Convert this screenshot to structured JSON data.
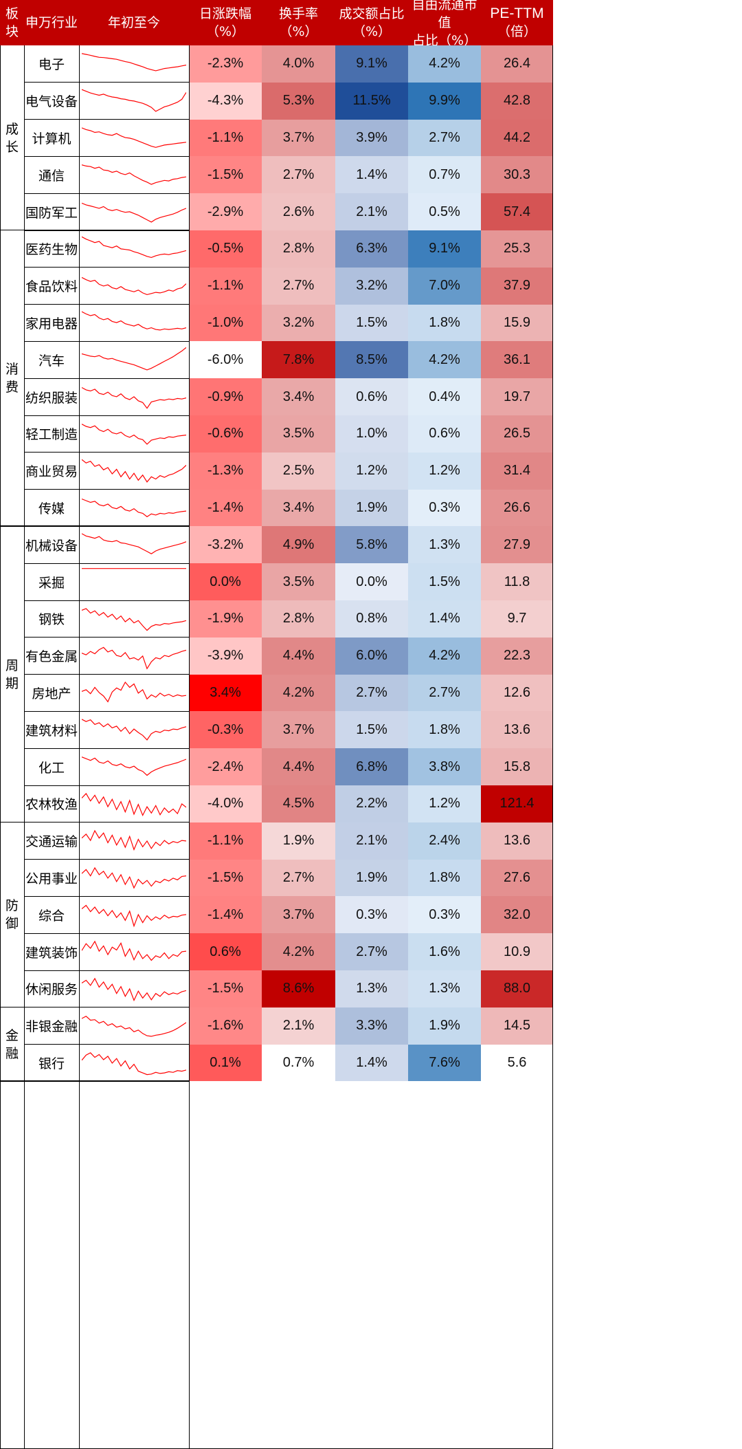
{
  "headers": {
    "group": [
      "板",
      "块"
    ],
    "industry": "申万行业",
    "ytd": "年初至今",
    "daily_change": [
      "日涨跌幅",
      "（%）"
    ],
    "turnover": [
      "换手率",
      "（%）"
    ],
    "volume_share": [
      "成交额占比",
      "（%）"
    ],
    "float_cap_share": [
      "自由流通市值",
      "占比（%）"
    ],
    "pe_ttm": [
      "PE-TTM",
      "（倍）"
    ]
  },
  "groups": [
    {
      "label": [
        "成",
        "长"
      ],
      "count": 5
    },
    {
      "label": [
        "消",
        "费"
      ],
      "count": 8
    },
    {
      "label": [
        "周",
        "期"
      ],
      "count": 8
    },
    {
      "label": [
        "防",
        "御"
      ],
      "count": 5
    },
    {
      "label": [
        "金",
        "融"
      ],
      "count": 2
    }
  ],
  "colors": {
    "header_bg": "#c00000",
    "red_max": "#ff0000",
    "red_min": "#ffffff",
    "blue_max": "#1f4e99",
    "blue_mid": "#2e75b6",
    "pe_max": "#c00000",
    "spark_line": "#ff0000"
  },
  "chart_data": {
    "type": "table",
    "columns": [
      "申万行业",
      "年初至今",
      "日涨跌幅（%）",
      "换手率（%）",
      "成交额占比（%）",
      "自由流通市值占比（%）",
      "PE-TTM（倍）"
    ],
    "rows": [
      {
        "industry": "电子",
        "daily_change": "-2.3%",
        "turnover": "4.0%",
        "volume_share": "9.1%",
        "float_cap_share": "4.2%",
        "pe_ttm": "26.4",
        "trend": [
          0.86,
          0.83,
          0.8,
          0.76,
          0.73,
          0.72,
          0.7,
          0.68,
          0.66,
          0.62,
          0.58,
          0.55,
          0.5,
          0.45,
          0.4,
          0.34,
          0.3,
          0.26,
          0.3,
          0.34,
          0.36,
          0.38,
          0.4,
          0.43,
          0.46
        ]
      },
      {
        "industry": "电气设备",
        "daily_change": "-4.3%",
        "turnover": "5.3%",
        "volume_share": "11.5%",
        "float_cap_share": "9.9%",
        "pe_ttm": "42.8",
        "trend": [
          0.9,
          0.84,
          0.78,
          0.74,
          0.7,
          0.74,
          0.68,
          0.64,
          0.62,
          0.58,
          0.56,
          0.52,
          0.5,
          0.46,
          0.42,
          0.36,
          0.28,
          0.14,
          0.22,
          0.3,
          0.34,
          0.4,
          0.46,
          0.56,
          0.8
        ]
      },
      {
        "industry": "计算机",
        "daily_change": "-1.1%",
        "turnover": "3.7%",
        "volume_share": "3.9%",
        "float_cap_share": "2.7%",
        "pe_ttm": "44.2",
        "trend": [
          0.86,
          0.8,
          0.76,
          0.7,
          0.72,
          0.66,
          0.62,
          0.6,
          0.66,
          0.58,
          0.52,
          0.5,
          0.46,
          0.4,
          0.34,
          0.28,
          0.22,
          0.18,
          0.22,
          0.26,
          0.28,
          0.3,
          0.32,
          0.34,
          0.36
        ]
      },
      {
        "industry": "通信",
        "daily_change": "-1.5%",
        "turnover": "2.7%",
        "volume_share": "1.4%",
        "float_cap_share": "0.7%",
        "pe_ttm": "30.3",
        "trend": [
          0.84,
          0.8,
          0.78,
          0.72,
          0.76,
          0.66,
          0.64,
          0.58,
          0.62,
          0.54,
          0.5,
          0.56,
          0.46,
          0.38,
          0.3,
          0.24,
          0.16,
          0.22,
          0.26,
          0.3,
          0.28,
          0.34,
          0.36,
          0.4,
          0.42
        ]
      },
      {
        "industry": "国防军工",
        "daily_change": "-2.9%",
        "turnover": "2.6%",
        "volume_share": "2.1%",
        "float_cap_share": "0.5%",
        "pe_ttm": "57.4",
        "trend": [
          0.8,
          0.74,
          0.7,
          0.66,
          0.62,
          0.68,
          0.58,
          0.54,
          0.58,
          0.52,
          0.48,
          0.5,
          0.44,
          0.38,
          0.3,
          0.22,
          0.14,
          0.24,
          0.3,
          0.34,
          0.38,
          0.42,
          0.48,
          0.56,
          0.62
        ]
      },
      {
        "industry": "医药生物",
        "daily_change": "-0.5%",
        "turnover": "2.8%",
        "volume_share": "6.3%",
        "float_cap_share": "9.1%",
        "pe_ttm": "25.3",
        "trend": [
          0.92,
          0.84,
          0.78,
          0.72,
          0.76,
          0.62,
          0.58,
          0.54,
          0.6,
          0.5,
          0.48,
          0.46,
          0.4,
          0.36,
          0.3,
          0.24,
          0.2,
          0.26,
          0.3,
          0.32,
          0.3,
          0.34,
          0.36,
          0.4,
          0.44
        ]
      },
      {
        "industry": "食品饮料",
        "daily_change": "-1.1%",
        "turnover": "2.7%",
        "volume_share": "3.2%",
        "float_cap_share": "7.0%",
        "pe_ttm": "37.9",
        "trend": [
          0.8,
          0.72,
          0.66,
          0.7,
          0.56,
          0.5,
          0.54,
          0.44,
          0.4,
          0.48,
          0.38,
          0.34,
          0.3,
          0.36,
          0.26,
          0.2,
          0.24,
          0.28,
          0.26,
          0.3,
          0.36,
          0.32,
          0.4,
          0.44,
          0.58
        ]
      },
      {
        "industry": "家用电器",
        "daily_change": "-1.0%",
        "turnover": "3.2%",
        "volume_share": "1.5%",
        "float_cap_share": "1.8%",
        "pe_ttm": "15.9",
        "trend": [
          0.9,
          0.82,
          0.76,
          0.8,
          0.68,
          0.62,
          0.66,
          0.56,
          0.52,
          0.58,
          0.48,
          0.44,
          0.4,
          0.46,
          0.36,
          0.3,
          0.34,
          0.28,
          0.26,
          0.3,
          0.28,
          0.3,
          0.32,
          0.3,
          0.34
        ]
      },
      {
        "industry": "汽车",
        "daily_change": "-6.0%",
        "turnover": "7.8%",
        "volume_share": "8.5%",
        "float_cap_share": "4.2%",
        "pe_ttm": "36.1",
        "trend": [
          0.7,
          0.66,
          0.62,
          0.6,
          0.64,
          0.56,
          0.52,
          0.54,
          0.48,
          0.44,
          0.4,
          0.36,
          0.32,
          0.26,
          0.2,
          0.14,
          0.2,
          0.28,
          0.36,
          0.44,
          0.52,
          0.6,
          0.7,
          0.8,
          0.92
        ]
      },
      {
        "industry": "纺织服装",
        "daily_change": "-0.9%",
        "turnover": "3.4%",
        "volume_share": "0.6%",
        "float_cap_share": "0.4%",
        "pe_ttm": "19.7",
        "trend": [
          0.82,
          0.74,
          0.7,
          0.76,
          0.62,
          0.58,
          0.66,
          0.54,
          0.5,
          0.6,
          0.46,
          0.4,
          0.5,
          0.36,
          0.3,
          0.1,
          0.32,
          0.36,
          0.4,
          0.38,
          0.42,
          0.4,
          0.44,
          0.42,
          0.46
        ]
      },
      {
        "industry": "轻工制造",
        "daily_change": "-0.6%",
        "turnover": "3.5%",
        "volume_share": "1.0%",
        "float_cap_share": "0.6%",
        "pe_ttm": "26.5",
        "trend": [
          0.84,
          0.76,
          0.72,
          0.78,
          0.64,
          0.58,
          0.66,
          0.54,
          0.5,
          0.56,
          0.44,
          0.38,
          0.46,
          0.34,
          0.3,
          0.14,
          0.28,
          0.32,
          0.36,
          0.34,
          0.4,
          0.38,
          0.42,
          0.44,
          0.46
        ]
      },
      {
        "industry": "商业贸易",
        "daily_change": "-1.3%",
        "turnover": "2.5%",
        "volume_share": "1.2%",
        "float_cap_share": "1.2%",
        "pe_ttm": "31.4",
        "trend": [
          0.9,
          0.78,
          0.84,
          0.66,
          0.72,
          0.54,
          0.62,
          0.4,
          0.56,
          0.3,
          0.48,
          0.22,
          0.42,
          0.18,
          0.36,
          0.12,
          0.3,
          0.22,
          0.34,
          0.28,
          0.36,
          0.4,
          0.48,
          0.56,
          0.7
        ]
      },
      {
        "industry": "传媒",
        "daily_change": "-1.4%",
        "turnover": "3.4%",
        "volume_share": "1.9%",
        "float_cap_share": "0.3%",
        "pe_ttm": "26.6",
        "trend": [
          0.82,
          0.76,
          0.7,
          0.74,
          0.62,
          0.58,
          0.64,
          0.52,
          0.48,
          0.56,
          0.44,
          0.4,
          0.48,
          0.36,
          0.32,
          0.2,
          0.3,
          0.26,
          0.32,
          0.3,
          0.34,
          0.32,
          0.36,
          0.38,
          0.4
        ]
      },
      {
        "industry": "机械设备",
        "daily_change": "-3.2%",
        "turnover": "4.9%",
        "volume_share": "5.8%",
        "float_cap_share": "1.3%",
        "pe_ttm": "27.9",
        "trend": [
          0.88,
          0.8,
          0.76,
          0.72,
          0.78,
          0.66,
          0.62,
          0.6,
          0.64,
          0.56,
          0.54,
          0.5,
          0.46,
          0.42,
          0.34,
          0.26,
          0.18,
          0.28,
          0.34,
          0.38,
          0.42,
          0.46,
          0.5,
          0.54,
          0.6
        ]
      },
      {
        "industry": "采掘",
        "daily_change": "0.0%",
        "turnover": "3.5%",
        "volume_share": "0.0%",
        "float_cap_share": "1.5%",
        "pe_ttm": "11.8",
        "trend": [
          0.96,
          0.96,
          0.96,
          0.96,
          0.96,
          0.96,
          0.96,
          0.96,
          0.96,
          0.96,
          0.96,
          0.96,
          0.96,
          0.96,
          0.96,
          0.96,
          0.96,
          0.96,
          0.96,
          0.96,
          0.96,
          0.96,
          0.96,
          0.96,
          0.96
        ]
      },
      {
        "industry": "钢铁",
        "daily_change": "-1.9%",
        "turnover": "2.8%",
        "volume_share": "0.8%",
        "float_cap_share": "1.4%",
        "pe_ttm": "9.7",
        "trend": [
          0.8,
          0.86,
          0.7,
          0.78,
          0.62,
          0.72,
          0.56,
          0.66,
          0.48,
          0.6,
          0.4,
          0.52,
          0.36,
          0.44,
          0.26,
          0.1,
          0.24,
          0.3,
          0.28,
          0.34,
          0.32,
          0.36,
          0.38,
          0.4,
          0.44
        ]
      },
      {
        "industry": "有色金属",
        "daily_change": "-3.9%",
        "turnover": "4.4%",
        "volume_share": "6.0%",
        "float_cap_share": "4.2%",
        "pe_ttm": "22.3",
        "trend": [
          0.6,
          0.54,
          0.66,
          0.58,
          0.72,
          0.8,
          0.64,
          0.7,
          0.52,
          0.48,
          0.62,
          0.4,
          0.44,
          0.36,
          0.5,
          0.06,
          0.3,
          0.44,
          0.4,
          0.52,
          0.48,
          0.56,
          0.6,
          0.66,
          0.7
        ]
      },
      {
        "industry": "房地产",
        "daily_change": "3.4%",
        "turnover": "4.2%",
        "volume_share": "2.7%",
        "float_cap_share": "2.7%",
        "pe_ttm": "12.6",
        "trend": [
          0.56,
          0.62,
          0.48,
          0.7,
          0.52,
          0.4,
          0.2,
          0.54,
          0.68,
          0.6,
          0.88,
          0.7,
          0.82,
          0.5,
          0.62,
          0.3,
          0.44,
          0.36,
          0.5,
          0.4,
          0.46,
          0.38,
          0.44,
          0.4,
          0.42
        ]
      },
      {
        "industry": "建筑材料",
        "daily_change": "-0.3%",
        "turnover": "3.7%",
        "volume_share": "1.5%",
        "float_cap_share": "1.8%",
        "pe_ttm": "13.6",
        "trend": [
          0.86,
          0.78,
          0.84,
          0.68,
          0.74,
          0.6,
          0.7,
          0.56,
          0.62,
          0.44,
          0.58,
          0.36,
          0.52,
          0.4,
          0.3,
          0.14,
          0.36,
          0.44,
          0.4,
          0.48,
          0.46,
          0.52,
          0.5,
          0.56,
          0.6
        ]
      },
      {
        "industry": "化工",
        "daily_change": "-2.4%",
        "turnover": "4.4%",
        "volume_share": "6.8%",
        "float_cap_share": "3.8%",
        "pe_ttm": "15.8",
        "trend": [
          0.84,
          0.78,
          0.72,
          0.8,
          0.66,
          0.62,
          0.7,
          0.58,
          0.54,
          0.6,
          0.5,
          0.46,
          0.52,
          0.4,
          0.34,
          0.2,
          0.32,
          0.4,
          0.46,
          0.52,
          0.56,
          0.6,
          0.64,
          0.7,
          0.76
        ]
      },
      {
        "industry": "农林牧渔",
        "daily_change": "-4.0%",
        "turnover": "4.5%",
        "volume_share": "2.2%",
        "float_cap_share": "1.2%",
        "pe_ttm": "121.4",
        "trend": [
          0.7,
          0.86,
          0.6,
          0.8,
          0.52,
          0.74,
          0.4,
          0.66,
          0.3,
          0.58,
          0.22,
          0.62,
          0.14,
          0.48,
          0.1,
          0.4,
          0.18,
          0.44,
          0.12,
          0.36,
          0.2,
          0.32,
          0.16,
          0.5,
          0.38
        ]
      },
      {
        "industry": "交通运输",
        "daily_change": "-1.1%",
        "turnover": "1.9%",
        "volume_share": "2.1%",
        "float_cap_share": "2.4%",
        "pe_ttm": "13.6",
        "trend": [
          0.6,
          0.74,
          0.52,
          0.86,
          0.6,
          0.78,
          0.44,
          0.7,
          0.36,
          0.62,
          0.28,
          0.66,
          0.2,
          0.56,
          0.3,
          0.5,
          0.24,
          0.46,
          0.34,
          0.52,
          0.4,
          0.48,
          0.44,
          0.52,
          0.5
        ]
      },
      {
        "industry": "公用事业",
        "daily_change": "-1.5%",
        "turnover": "2.7%",
        "volume_share": "1.9%",
        "float_cap_share": "1.8%",
        "pe_ttm": "27.6",
        "trend": [
          0.66,
          0.8,
          0.58,
          0.86,
          0.62,
          0.74,
          0.5,
          0.68,
          0.38,
          0.62,
          0.28,
          0.54,
          0.16,
          0.46,
          0.3,
          0.42,
          0.22,
          0.4,
          0.34,
          0.46,
          0.4,
          0.5,
          0.44,
          0.56,
          0.58
        ]
      },
      {
        "industry": "综合",
        "daily_change": "-1.4%",
        "turnover": "3.7%",
        "volume_share": "0.3%",
        "float_cap_share": "0.3%",
        "pe_ttm": "32.0",
        "trend": [
          0.7,
          0.82,
          0.6,
          0.76,
          0.54,
          0.68,
          0.46,
          0.64,
          0.4,
          0.56,
          0.3,
          0.62,
          0.1,
          0.5,
          0.22,
          0.46,
          0.3,
          0.42,
          0.34,
          0.48,
          0.38,
          0.44,
          0.42,
          0.48,
          0.5
        ]
      },
      {
        "industry": "建筑装饰",
        "daily_change": "0.6%",
        "turnover": "4.2%",
        "volume_share": "2.7%",
        "float_cap_share": "1.6%",
        "pe_ttm": "10.9",
        "trend": [
          0.54,
          0.78,
          0.62,
          0.86,
          0.52,
          0.7,
          0.4,
          0.66,
          0.56,
          0.8,
          0.34,
          0.6,
          0.22,
          0.52,
          0.26,
          0.4,
          0.2,
          0.36,
          0.3,
          0.46,
          0.26,
          0.4,
          0.34,
          0.5,
          0.52
        ]
      },
      {
        "industry": "休闲服务",
        "daily_change": "-1.5%",
        "turnover": "8.6%",
        "volume_share": "1.3%",
        "float_cap_share": "1.3%",
        "pe_ttm": "88.0",
        "trend": [
          0.7,
          0.8,
          0.62,
          0.86,
          0.56,
          0.74,
          0.48,
          0.66,
          0.34,
          0.58,
          0.24,
          0.5,
          0.1,
          0.42,
          0.18,
          0.36,
          0.12,
          0.34,
          0.24,
          0.4,
          0.3,
          0.36,
          0.32,
          0.4,
          0.44
        ]
      },
      {
        "industry": "非银金融",
        "daily_change": "-1.6%",
        "turnover": "2.1%",
        "volume_share": "3.3%",
        "float_cap_share": "1.9%",
        "pe_ttm": "14.5",
        "trend": [
          0.76,
          0.84,
          0.7,
          0.72,
          0.6,
          0.66,
          0.52,
          0.58,
          0.46,
          0.5,
          0.4,
          0.44,
          0.3,
          0.36,
          0.24,
          0.16,
          0.14,
          0.18,
          0.2,
          0.24,
          0.28,
          0.34,
          0.42,
          0.52,
          0.62
        ]
      },
      {
        "industry": "银行",
        "daily_change": "0.1%",
        "turnover": "0.7%",
        "volume_share": "1.4%",
        "float_cap_share": "7.6%",
        "pe_ttm": "5.6",
        "trend": [
          0.6,
          0.78,
          0.86,
          0.7,
          0.8,
          0.62,
          0.74,
          0.5,
          0.66,
          0.4,
          0.58,
          0.3,
          0.46,
          0.22,
          0.16,
          0.1,
          0.12,
          0.18,
          0.14,
          0.16,
          0.2,
          0.18,
          0.24,
          0.22,
          0.26
        ]
      }
    ]
  }
}
